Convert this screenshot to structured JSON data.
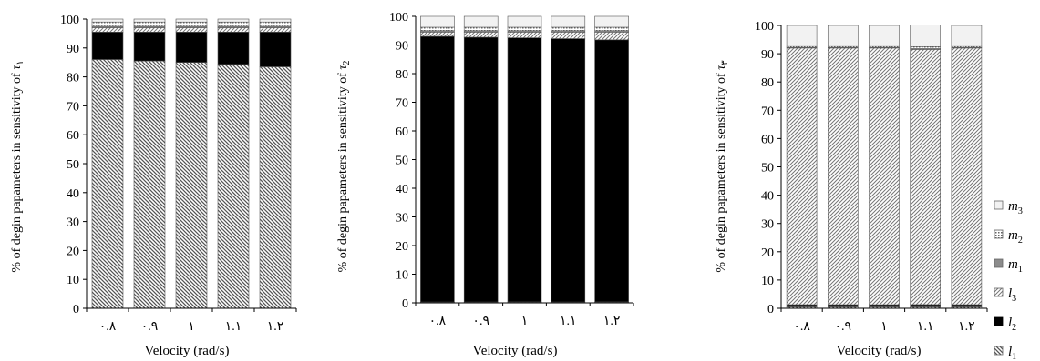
{
  "legend": [
    {
      "key": "m3",
      "base": "m",
      "sub": "3",
      "pattern": "light"
    },
    {
      "key": "m2",
      "base": "m",
      "sub": "2",
      "pattern": "dots"
    },
    {
      "key": "m1",
      "base": "m",
      "sub": "1",
      "pattern": "gray"
    },
    {
      "key": "l3",
      "base": "l",
      "sub": "3",
      "pattern": "hatch-fwd"
    },
    {
      "key": "l2",
      "base": "l",
      "sub": "2",
      "pattern": "black"
    },
    {
      "key": "l1",
      "base": "l",
      "sub": "1",
      "pattern": "hatch-back"
    }
  ],
  "chart_data": [
    {
      "type": "bar",
      "stacked": true,
      "xlabel": "Velocity (rad/s)",
      "ylabel_prefix": "% of degin papameters in sensitivity of ",
      "ylabel_symbol": "τ",
      "ylabel_sub": "۱",
      "ylim": [
        0,
        100
      ],
      "yticks": [
        "0",
        "10",
        "20",
        "30",
        "40",
        "50",
        "60",
        "70",
        "80",
        "90",
        "100"
      ],
      "categories": [
        "۰.۸",
        "۰.۹",
        "۱",
        "۱.۱",
        "۱.۲"
      ],
      "series": [
        {
          "key": "l1",
          "values": [
            86,
            85.5,
            85,
            84.3,
            83.5
          ]
        },
        {
          "key": "l2",
          "values": [
            9.5,
            10,
            10.5,
            11.2,
            12
          ]
        },
        {
          "key": "l3",
          "values": [
            1.5,
            1.5,
            1.5,
            1.5,
            1.5
          ]
        },
        {
          "key": "m1",
          "values": [
            0.5,
            0.5,
            0.5,
            0.5,
            0.5
          ]
        },
        {
          "key": "m2",
          "values": [
            1.5,
            1.5,
            1.5,
            1.5,
            1.5
          ]
        },
        {
          "key": "m3",
          "values": [
            1,
            1,
            1,
            1,
            1
          ]
        }
      ]
    },
    {
      "type": "bar",
      "stacked": true,
      "xlabel": "Velocity (rad/s)",
      "ylabel_prefix": "% of degin papameters in sensitivity of ",
      "ylabel_symbol": "τ",
      "ylabel_sub": "2",
      "ylim": [
        0,
        100
      ],
      "yticks": [
        "0",
        "10",
        "20",
        "30",
        "40",
        "50",
        "60",
        "70",
        "80",
        "90",
        "100"
      ],
      "categories": [
        "۰.۸",
        "۰.۹",
        "۱",
        "۱.۱",
        "۱.۲"
      ],
      "series": [
        {
          "key": "l1",
          "values": [
            0.3,
            0.3,
            0.3,
            0.3,
            0.3
          ]
        },
        {
          "key": "l2",
          "values": [
            92.7,
            92.4,
            92.2,
            91.9,
            91.5
          ]
        },
        {
          "key": "l3",
          "values": [
            1.5,
            1.8,
            2.0,
            2.3,
            2.7
          ]
        },
        {
          "key": "m1",
          "values": [
            0.5,
            0.5,
            0.5,
            0.5,
            0.5
          ]
        },
        {
          "key": "m2",
          "values": [
            1.2,
            1.2,
            1.2,
            1.2,
            1.2
          ]
        },
        {
          "key": "m3",
          "values": [
            3.8,
            3.8,
            3.8,
            3.8,
            3.8
          ]
        }
      ]
    },
    {
      "type": "bar",
      "stacked": true,
      "xlabel": "Velocity (rad/s)",
      "ylabel_prefix": "% of degin papameters in sensitivity of ",
      "ylabel_symbol": "τ",
      "ylabel_sub": "۳",
      "ylim": [
        0,
        100
      ],
      "yticks": [
        "0",
        "10",
        "20",
        "30",
        "40",
        "50",
        "60",
        "70",
        "80",
        "90",
        "100"
      ],
      "categories": [
        "۰.۸",
        "۰.۹",
        "۱",
        "۱.۱",
        "۱.۲"
      ],
      "series": [
        {
          "key": "l1",
          "values": [
            0.5,
            0.5,
            0.5,
            0.5,
            0.5
          ]
        },
        {
          "key": "l2",
          "values": [
            0.8,
            0.8,
            0.8,
            0.8,
            0.8
          ]
        },
        {
          "key": "l3",
          "values": [
            90.7,
            90.7,
            90.7,
            90.2,
            90.7
          ]
        },
        {
          "key": "m1",
          "values": [
            0.3,
            0.3,
            0.3,
            0.3,
            0.3
          ]
        },
        {
          "key": "m2",
          "values": [
            0.7,
            0.7,
            0.7,
            0.7,
            0.7
          ]
        },
        {
          "key": "m3",
          "values": [
            7,
            7,
            7,
            7.7,
            7
          ]
        }
      ]
    }
  ]
}
